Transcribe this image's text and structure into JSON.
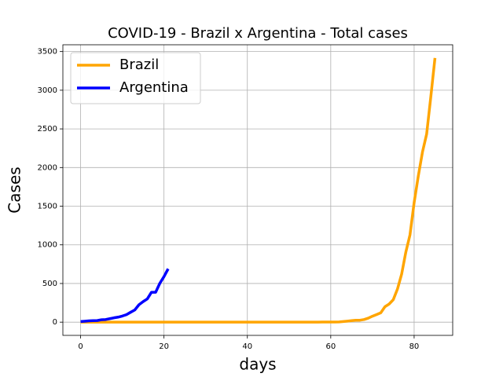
{
  "chart_data": {
    "type": "line",
    "title": "COVID-19 - Brazil x Argentina - Total cases",
    "x_label": "days",
    "y_label": "Cases",
    "xlim": [
      -4.25,
      89.25
    ],
    "xticks": [
      0,
      20,
      40,
      60,
      80
    ],
    "ylim": [
      -171,
      3588
    ],
    "yticks": [
      0,
      500,
      1000,
      1500,
      2000,
      2500,
      3000,
      3500
    ],
    "grid": true,
    "legend": "upper left",
    "series": [
      {
        "name": "Brazil",
        "color": "#ffa500",
        "x": [
          0,
          1,
          2,
          3,
          4,
          5,
          6,
          7,
          8,
          9,
          10,
          11,
          12,
          13,
          14,
          15,
          16,
          17,
          18,
          19,
          20,
          21,
          22,
          23,
          24,
          25,
          26,
          27,
          28,
          29,
          30,
          31,
          32,
          33,
          34,
          35,
          36,
          37,
          38,
          39,
          40,
          41,
          42,
          43,
          44,
          45,
          46,
          47,
          48,
          49,
          50,
          51,
          52,
          53,
          54,
          55,
          56,
          57,
          58,
          59,
          60,
          61,
          62,
          63,
          64,
          65,
          66,
          67,
          68,
          69,
          70,
          71,
          72,
          73,
          74,
          75,
          76,
          77,
          78,
          79,
          80,
          81,
          82,
          83,
          84,
          85
        ],
        "values": [
          0,
          0,
          0,
          0,
          0,
          0,
          0,
          0,
          0,
          0,
          0,
          0,
          0,
          0,
          0,
          0,
          0,
          0,
          0,
          0,
          0,
          0,
          0,
          0,
          0,
          0,
          0,
          0,
          0,
          0,
          0,
          0,
          0,
          0,
          0,
          0,
          0,
          0,
          0,
          0,
          0,
          0,
          0,
          0,
          0,
          0,
          0,
          0,
          0,
          0,
          0,
          0,
          0,
          0,
          0,
          1,
          1,
          1,
          2,
          2,
          2,
          2,
          3,
          8,
          13,
          19,
          25,
          25,
          34,
          52,
          77,
          98,
          121,
          200,
          234,
          291,
          428,
          621,
          904,
          1128,
          1546,
          1891,
          2201,
          2433,
          2915,
          3417
        ]
      },
      {
        "name": "Argentina",
        "color": "#0000ff",
        "x": [
          0,
          1,
          2,
          3,
          4,
          5,
          6,
          7,
          8,
          9,
          10,
          11,
          12,
          13,
          14,
          15,
          16,
          17,
          18,
          19,
          20,
          21
        ],
        "values": [
          8,
          12,
          17,
          19,
          21,
          31,
          34,
          45,
          56,
          65,
          79,
          97,
          128,
          158,
          225,
          266,
          301,
          387,
          387,
          502,
          589,
          690
        ]
      }
    ]
  }
}
